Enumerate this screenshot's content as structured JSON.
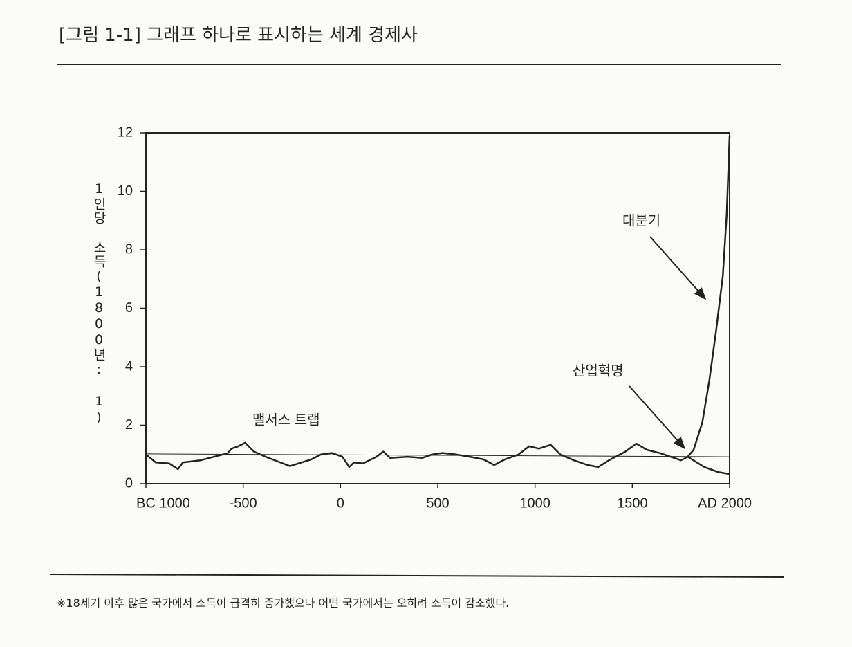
{
  "chart_data": {
    "type": "line",
    "title": "[그림 1-1] 그래프 하나로 표시하는 세계 경제사",
    "y_label": "1인당 소득(1800년: 1)",
    "note": "※18세기 이후 많은 국가에서 소득이 급격히 증가했으나 어떤 국가에서는 오히려 소득이 감소했다.",
    "annotations": [
      "맬서스 트랩",
      "산업혁명",
      "대분기"
    ],
    "xlim": [
      -1000,
      2000
    ],
    "xticks": [
      {
        "value": -1000,
        "label": "BC 1000"
      },
      -500,
      0,
      500,
      1000,
      1500,
      {
        "value": 2000,
        "label": "AD 2000"
      }
    ],
    "ylim": [
      0,
      12
    ],
    "yticks": [
      0,
      2,
      4,
      6,
      8,
      10,
      12
    ],
    "series": [
      {
        "color": "#222222",
        "width": 2.5,
        "x": [
          -1000,
          -950,
          -880,
          -835,
          -810,
          -720,
          -650,
          -580,
          -560,
          -525,
          -490,
          -445,
          -385,
          -330,
          -260,
          -150,
          -100,
          -45,
          10,
          45,
          70,
          115,
          185,
          220,
          255,
          345,
          420,
          470,
          525,
          595,
          665,
          735,
          790,
          845,
          915,
          970,
          1020,
          1080,
          1130,
          1200,
          1270,
          1325,
          1380,
          1465,
          1520,
          1575,
          1645,
          1715,
          1750,
          1785,
          1815,
          1860,
          1895,
          1930,
          1965,
          1985,
          2000
        ],
        "values": [
          1.0,
          0.73,
          0.69,
          0.5,
          0.73,
          0.8,
          0.92,
          1.04,
          1.2,
          1.28,
          1.4,
          1.1,
          0.92,
          0.78,
          0.6,
          0.83,
          1.0,
          1.05,
          0.92,
          0.57,
          0.73,
          0.69,
          0.92,
          1.1,
          0.88,
          0.92,
          0.88,
          1.0,
          1.05,
          1.0,
          0.92,
          0.83,
          0.64,
          0.83,
          1.0,
          1.28,
          1.2,
          1.33,
          1.0,
          0.8,
          0.64,
          0.57,
          0.8,
          1.1,
          1.37,
          1.16,
          1.04,
          0.88,
          0.8,
          0.92,
          1.16,
          2.1,
          3.5,
          5.2,
          7.1,
          9.2,
          11.9
        ]
      },
      {
        "color": "#222222",
        "width": 2.5,
        "x": [
          1785,
          1870,
          1940,
          2000
        ],
        "values": [
          0.92,
          0.57,
          0.4,
          0.33
        ]
      },
      {
        "color": "#222222",
        "width": 1,
        "x": [
          -1000,
          2000
        ],
        "values": [
          1.02,
          0.92
        ]
      }
    ]
  }
}
